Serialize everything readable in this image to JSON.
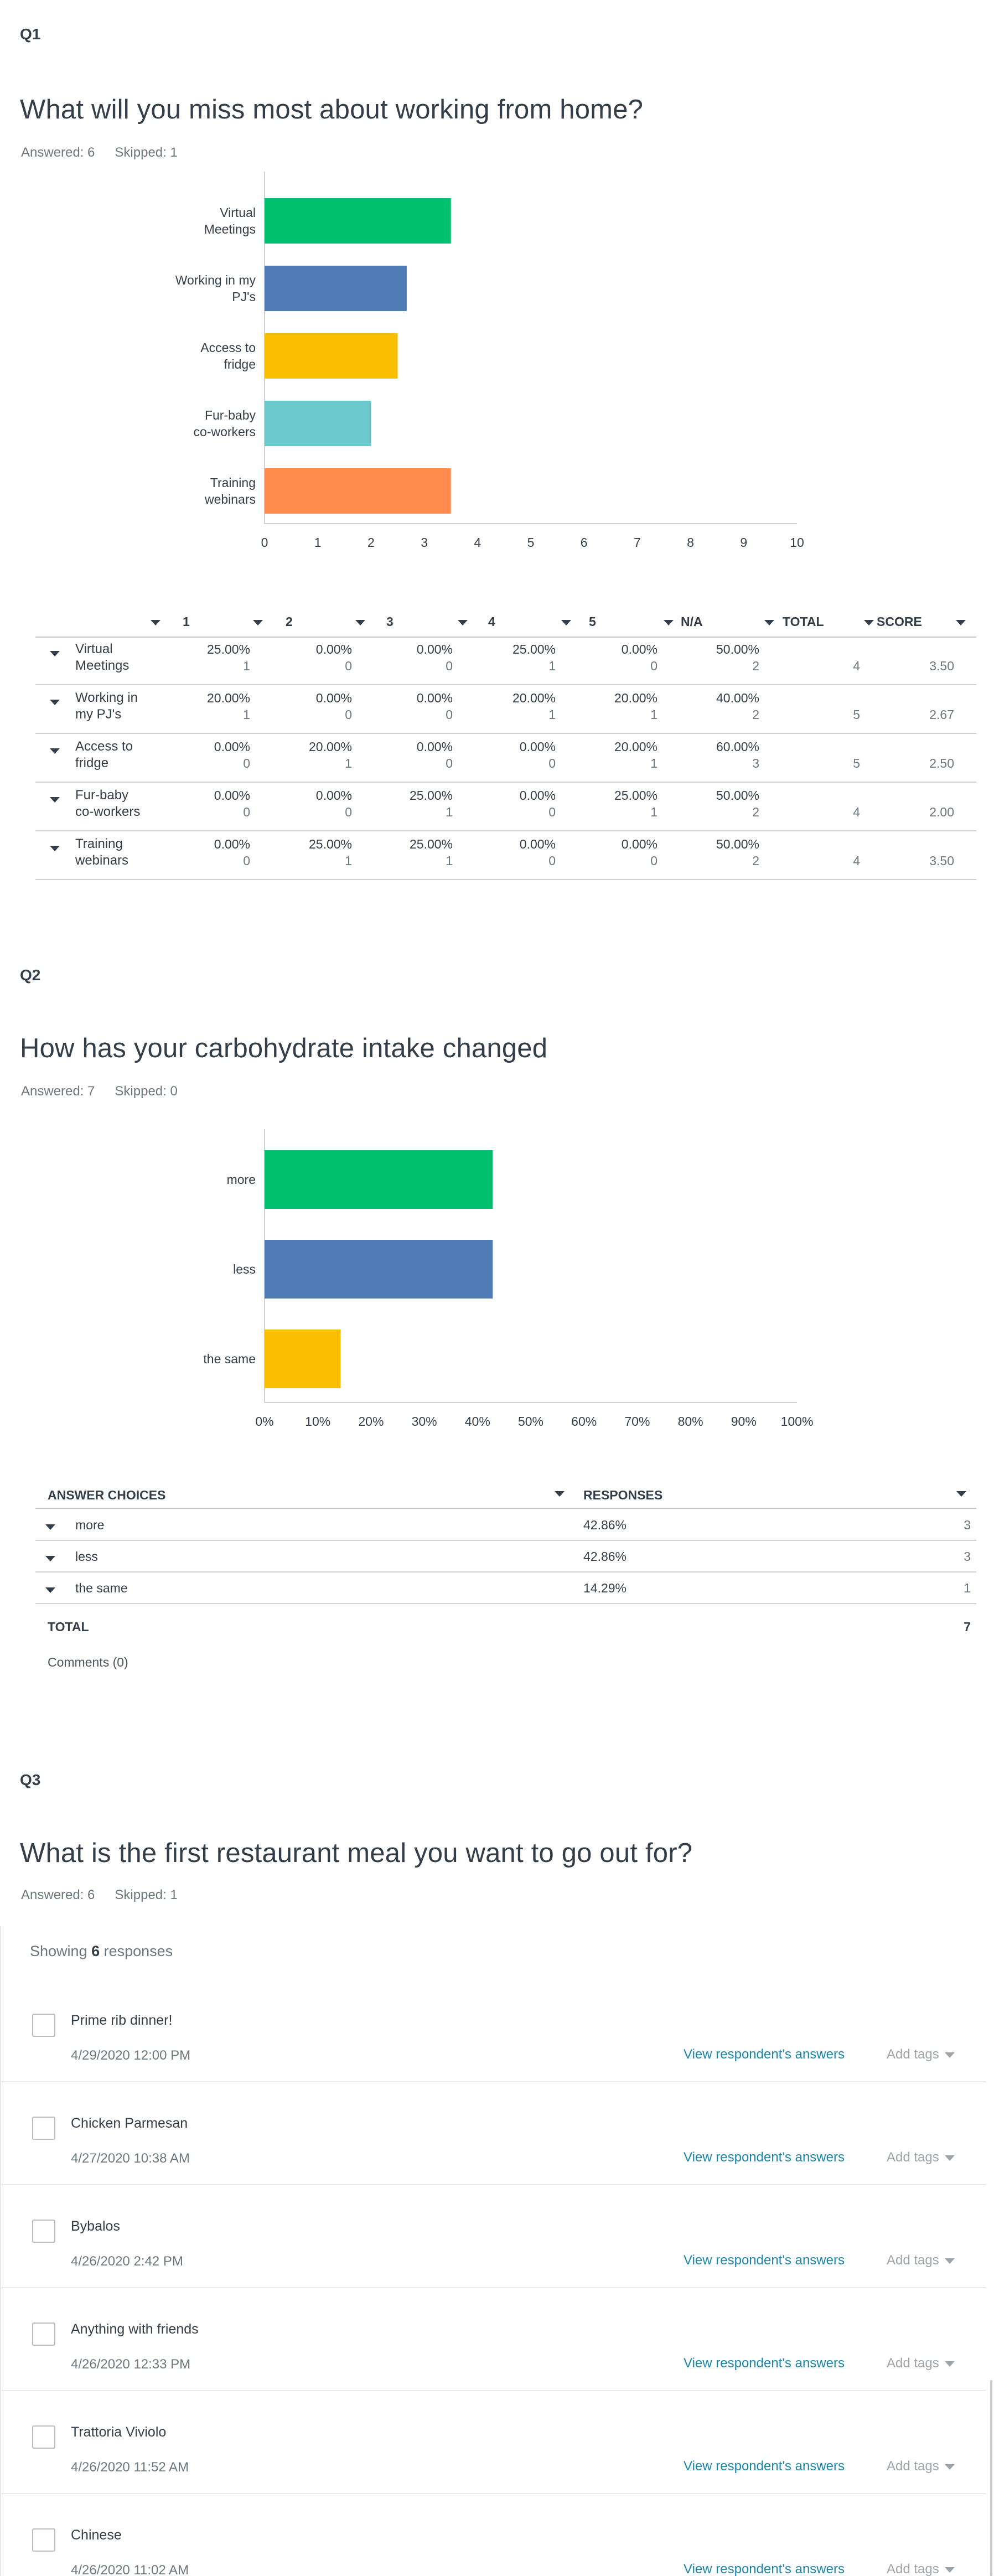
{
  "q1": {
    "number": "Q1",
    "title": "What will you miss most about working from home?",
    "answered": "Answered: 6",
    "skipped": "Skipped: 1",
    "chart_data": {
      "type": "bar",
      "orientation": "horizontal",
      "categories": [
        [
          "Virtual",
          "Meetings"
        ],
        [
          "Working in my",
          "PJ's"
        ],
        [
          "Access to",
          "fridge"
        ],
        [
          "Fur-baby",
          "co-workers"
        ],
        [
          "Training",
          "webinars"
        ]
      ],
      "values": [
        3.5,
        2.67,
        2.5,
        2.0,
        3.5
      ],
      "colors": [
        "#00bf6f",
        "#507cb6",
        "#f9be00",
        "#6bc8cd",
        "#ff8b4f"
      ],
      "xlim": [
        0,
        10
      ],
      "ticks": [
        "0",
        "1",
        "2",
        "3",
        "4",
        "5",
        "6",
        "7",
        "8",
        "9",
        "10"
      ],
      "grid": false
    },
    "table": {
      "headers": [
        "1",
        "2",
        "3",
        "4",
        "5",
        "N/A",
        "TOTAL",
        "SCORE"
      ],
      "rows": [
        {
          "label": [
            "Virtual",
            "Meetings"
          ],
          "pcts": [
            "25.00%",
            "0.00%",
            "0.00%",
            "25.00%",
            "0.00%",
            "50.00%"
          ],
          "counts": [
            "1",
            "0",
            "0",
            "1",
            "0",
            "2"
          ],
          "total": "4",
          "score": "3.50"
        },
        {
          "label": [
            "Working in",
            "my PJ's"
          ],
          "pcts": [
            "20.00%",
            "0.00%",
            "0.00%",
            "20.00%",
            "20.00%",
            "40.00%"
          ],
          "counts": [
            "1",
            "0",
            "0",
            "1",
            "1",
            "2"
          ],
          "total": "5",
          "score": "2.67"
        },
        {
          "label": [
            "Access to",
            "fridge"
          ],
          "pcts": [
            "0.00%",
            "20.00%",
            "0.00%",
            "0.00%",
            "20.00%",
            "60.00%"
          ],
          "counts": [
            "0",
            "1",
            "0",
            "0",
            "1",
            "3"
          ],
          "total": "5",
          "score": "2.50"
        },
        {
          "label": [
            "Fur-baby",
            "co-workers"
          ],
          "pcts": [
            "0.00%",
            "0.00%",
            "25.00%",
            "0.00%",
            "25.00%",
            "50.00%"
          ],
          "counts": [
            "0",
            "0",
            "1",
            "0",
            "1",
            "2"
          ],
          "total": "4",
          "score": "2.00"
        },
        {
          "label": [
            "Training",
            "webinars"
          ],
          "pcts": [
            "0.00%",
            "25.00%",
            "25.00%",
            "0.00%",
            "0.00%",
            "50.00%"
          ],
          "counts": [
            "0",
            "1",
            "1",
            "0",
            "0",
            "2"
          ],
          "total": "4",
          "score": "3.50"
        }
      ]
    }
  },
  "q2": {
    "number": "Q2",
    "title": "How has your carbohydrate intake changed",
    "answered": "Answered: 7",
    "skipped": "Skipped: 0",
    "chart_data": {
      "type": "bar",
      "orientation": "horizontal",
      "categories": [
        "more",
        "less",
        "the same"
      ],
      "values": [
        42.86,
        42.86,
        14.29
      ],
      "colors": [
        "#00bf6f",
        "#507cb6",
        "#f9be00"
      ],
      "xlim": [
        0,
        100
      ],
      "ticks": [
        "0%",
        "10%",
        "20%",
        "30%",
        "40%",
        "50%",
        "60%",
        "70%",
        "80%",
        "90%",
        "100%"
      ],
      "grid": false
    },
    "table": {
      "col_answer": "ANSWER CHOICES",
      "col_responses": "RESPONSES",
      "rows": [
        {
          "label": "more",
          "pct": "42.86%",
          "count": "3"
        },
        {
          "label": "less",
          "pct": "42.86%",
          "count": "3"
        },
        {
          "label": "the same",
          "pct": "14.29%",
          "count": "1"
        }
      ],
      "total_label": "TOTAL",
      "total_value": "7",
      "comments": "Comments (0)"
    }
  },
  "q3": {
    "number": "Q3",
    "title": "What is the first restaurant meal you want to go out for?",
    "answered": "Answered: 6",
    "skipped": "Skipped: 1",
    "showing_prefix": "Showing ",
    "showing_count": "6",
    "showing_suffix": " responses",
    "view_label": "View respondent's answers",
    "tags_label": "Add tags",
    "responses": [
      {
        "text": "Prime rib dinner!",
        "date": "4/29/2020 12:00 PM"
      },
      {
        "text": "Chicken Parmesan",
        "date": "4/27/2020 10:38 AM"
      },
      {
        "text": "Bybalos",
        "date": "4/26/2020 2:42 PM"
      },
      {
        "text": "Anything with friends",
        "date": "4/26/2020 12:33 PM"
      },
      {
        "text": "Trattoria Viviolo",
        "date": "4/26/2020 11:52 AM"
      },
      {
        "text": "Chinese",
        "date": "4/26/2020 11:02 AM"
      }
    ]
  }
}
